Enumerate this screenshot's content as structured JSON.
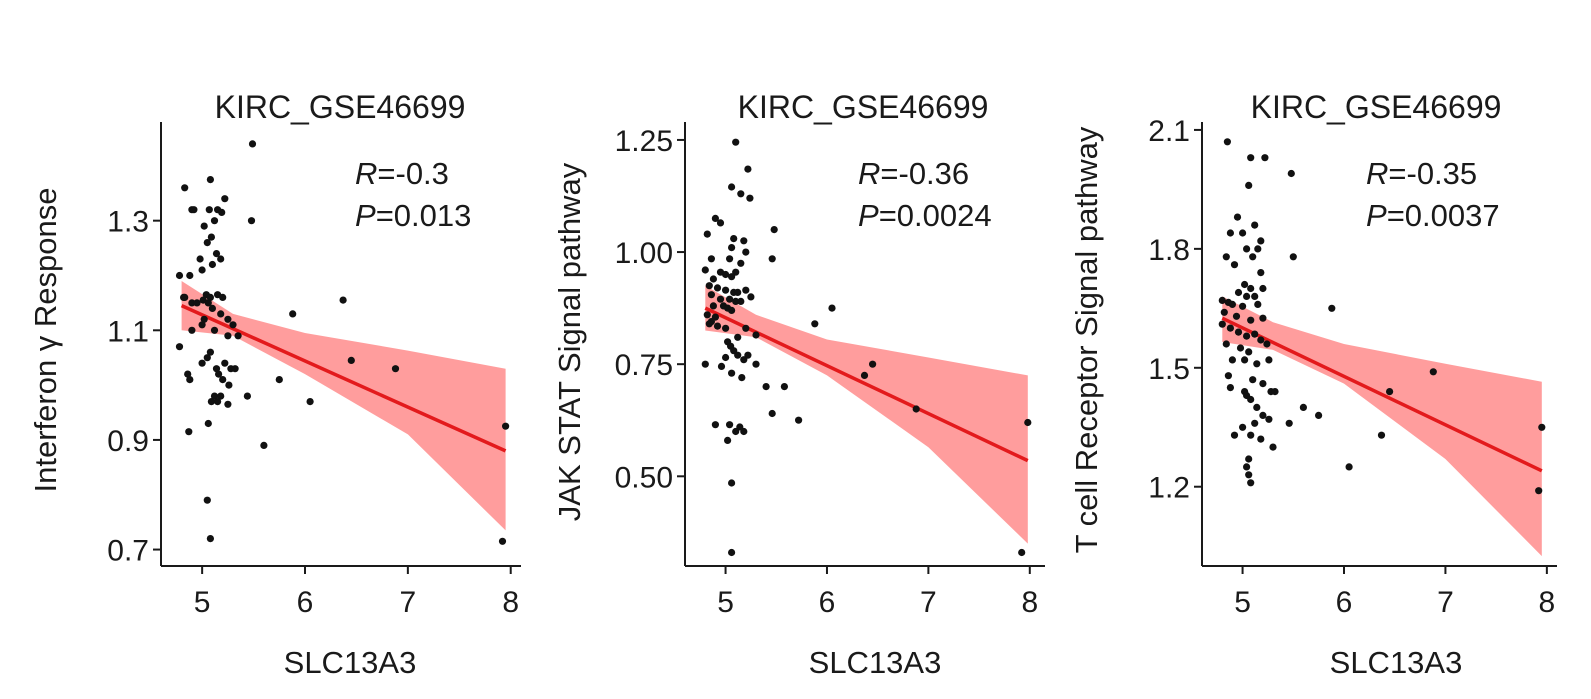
{
  "colors": {
    "ci_band": "#ff8c8c",
    "fit_line": "#e31a1c",
    "points": "#111111",
    "axis": "#1a1a1a"
  },
  "chart_data": [
    {
      "type": "scatter",
      "title": "KIRC_GSE46699",
      "xlabel": "SLC13A3",
      "ylabel": "Interferon γ Response",
      "xlim": [
        4.6,
        8.1
      ],
      "ylim": [
        0.67,
        1.48
      ],
      "xticks": [
        "5",
        "6",
        "7",
        "8"
      ],
      "yticks": [
        "0.7",
        "0.9",
        "1.1",
        "1.3"
      ],
      "stat_r_label": "R",
      "stat_r_value": "=-0.3",
      "stat_p_label": "P",
      "stat_p_value": "=0.013",
      "regression": {
        "x0": 4.8,
        "y0": 1.145,
        "x1": 7.95,
        "y1": 0.88
      },
      "ci": {
        "upper": [
          [
            4.8,
            1.19
          ],
          [
            5.3,
            1.13
          ],
          [
            6.0,
            1.095
          ],
          [
            7.0,
            1.063
          ],
          [
            7.95,
            1.03
          ]
        ],
        "lower": [
          [
            4.8,
            1.1
          ],
          [
            5.3,
            1.09
          ],
          [
            6.0,
            1.02
          ],
          [
            7.0,
            0.91
          ],
          [
            7.95,
            0.735
          ]
        ]
      },
      "points": [
        [
          5.49,
          1.44
        ],
        [
          4.83,
          1.36
        ],
        [
          5.08,
          1.375
        ],
        [
          4.9,
          1.32
        ],
        [
          4.92,
          1.32
        ],
        [
          5.22,
          1.34
        ],
        [
          5.15,
          1.32
        ],
        [
          5.07,
          1.32
        ],
        [
          5.19,
          1.315
        ],
        [
          5.48,
          1.3
        ],
        [
          5.12,
          1.3
        ],
        [
          5.05,
          1.26
        ],
        [
          5.09,
          1.27
        ],
        [
          5.02,
          1.29
        ],
        [
          5.18,
          1.23
        ],
        [
          5.14,
          1.24
        ],
        [
          4.98,
          1.23
        ],
        [
          5.1,
          1.22
        ],
        [
          4.78,
          1.2
        ],
        [
          4.88,
          1.2
        ],
        [
          5.0,
          1.21
        ],
        [
          4.83,
          1.16
        ],
        [
          4.82,
          1.16
        ],
        [
          4.9,
          1.15
        ],
        [
          5.04,
          1.165
        ],
        [
          5.08,
          1.16
        ],
        [
          5.15,
          1.165
        ],
        [
          5.2,
          1.16
        ],
        [
          4.95,
          1.15
        ],
        [
          5.01,
          1.155
        ],
        [
          5.06,
          1.15
        ],
        [
          5.02,
          1.12
        ],
        [
          5.1,
          1.14
        ],
        [
          5.18,
          1.13
        ],
        [
          5.25,
          1.12
        ],
        [
          4.9,
          1.1
        ],
        [
          5.0,
          1.11
        ],
        [
          5.12,
          1.1
        ],
        [
          5.3,
          1.11
        ],
        [
          4.78,
          1.07
        ],
        [
          5.08,
          1.06
        ],
        [
          5.25,
          1.09
        ],
        [
          5.35,
          1.09
        ],
        [
          5.05,
          1.05
        ],
        [
          5.0,
          1.04
        ],
        [
          5.14,
          1.03
        ],
        [
          5.22,
          1.04
        ],
        [
          5.28,
          1.03
        ],
        [
          5.32,
          1.03
        ],
        [
          4.86,
          1.02
        ],
        [
          5.16,
          1.02
        ],
        [
          4.88,
          1.01
        ],
        [
          5.2,
          1.01
        ],
        [
          5.26,
          1.0
        ],
        [
          5.12,
          0.98
        ],
        [
          5.18,
          0.98
        ],
        [
          5.44,
          0.98
        ],
        [
          5.09,
          0.97
        ],
        [
          5.15,
          0.97
        ],
        [
          5.25,
          0.965
        ],
        [
          5.06,
          0.93
        ],
        [
          4.87,
          0.915
        ],
        [
          5.6,
          0.89
        ],
        [
          5.75,
          1.01
        ],
        [
          6.05,
          0.97
        ],
        [
          5.88,
          1.13
        ],
        [
          6.37,
          1.155
        ],
        [
          6.45,
          1.045
        ],
        [
          6.88,
          1.03
        ],
        [
          7.95,
          0.925
        ],
        [
          7.92,
          0.715
        ],
        [
          5.05,
          0.79
        ],
        [
          5.08,
          0.72
        ]
      ]
    },
    {
      "type": "scatter",
      "title": "KIRC_GSE46699",
      "xlabel": "SLC13A3",
      "ylabel": "JAK STAT Signal pathway",
      "xlim": [
        4.6,
        8.15
      ],
      "ylim": [
        0.3,
        1.29
      ],
      "xticks": [
        "5",
        "6",
        "7",
        "8"
      ],
      "yticks": [
        "0.50",
        "0.75",
        "1.00",
        "1.25"
      ],
      "stat_r_label": "R",
      "stat_r_value": "=-0.36",
      "stat_p_label": "P",
      "stat_p_value": "=0.0024",
      "regression": {
        "x0": 4.8,
        "y0": 0.875,
        "x1": 7.98,
        "y1": 0.535
      },
      "ci": {
        "upper": [
          [
            4.8,
            0.925
          ],
          [
            5.3,
            0.86
          ],
          [
            6.0,
            0.805
          ],
          [
            7.0,
            0.765
          ],
          [
            7.98,
            0.725
          ]
        ],
        "lower": [
          [
            4.8,
            0.825
          ],
          [
            5.3,
            0.81
          ],
          [
            6.0,
            0.725
          ],
          [
            7.0,
            0.565
          ],
          [
            7.98,
            0.35
          ]
        ]
      },
      "points": [
        [
          5.1,
          1.245
        ],
        [
          5.22,
          1.185
        ],
        [
          5.06,
          1.145
        ],
        [
          5.15,
          1.13
        ],
        [
          5.24,
          1.12
        ],
        [
          4.9,
          1.075
        ],
        [
          4.95,
          1.065
        ],
        [
          5.48,
          1.05
        ],
        [
          4.82,
          1.04
        ],
        [
          5.08,
          1.03
        ],
        [
          5.18,
          1.025
        ],
        [
          5.06,
          1.01
        ],
        [
          5.2,
          1.0
        ],
        [
          4.86,
          0.985
        ],
        [
          5.04,
          0.985
        ],
        [
          5.15,
          0.975
        ],
        [
          5.46,
          0.985
        ],
        [
          4.8,
          0.96
        ],
        [
          4.95,
          0.955
        ],
        [
          5.1,
          0.955
        ],
        [
          5.0,
          0.95
        ],
        [
          5.06,
          0.945
        ],
        [
          4.88,
          0.94
        ],
        [
          4.84,
          0.925
        ],
        [
          4.92,
          0.92
        ],
        [
          5.0,
          0.915
        ],
        [
          5.08,
          0.91
        ],
        [
          5.12,
          0.91
        ],
        [
          5.2,
          0.915
        ],
        [
          4.86,
          0.905
        ],
        [
          4.95,
          0.895
        ],
        [
          5.04,
          0.895
        ],
        [
          5.1,
          0.89
        ],
        [
          5.15,
          0.89
        ],
        [
          5.25,
          0.9
        ],
        [
          4.88,
          0.88
        ],
        [
          4.98,
          0.88
        ],
        [
          5.02,
          0.875
        ],
        [
          5.06,
          0.87
        ],
        [
          4.82,
          0.86
        ],
        [
          4.9,
          0.855
        ],
        [
          4.86,
          0.845
        ],
        [
          4.84,
          0.84
        ],
        [
          4.92,
          0.835
        ],
        [
          5.0,
          0.83
        ],
        [
          5.2,
          0.83
        ],
        [
          5.3,
          0.815
        ],
        [
          5.12,
          0.81
        ],
        [
          5.02,
          0.8
        ],
        [
          5.05,
          0.79
        ],
        [
          5.08,
          0.78
        ],
        [
          5.12,
          0.77
        ],
        [
          5.18,
          0.76
        ],
        [
          5.22,
          0.77
        ],
        [
          5.0,
          0.765
        ],
        [
          4.8,
          0.75
        ],
        [
          4.96,
          0.745
        ],
        [
          5.06,
          0.73
        ],
        [
          5.16,
          0.72
        ],
        [
          5.3,
          0.75
        ],
        [
          5.4,
          0.7
        ],
        [
          5.58,
          0.7
        ],
        [
          5.46,
          0.64
        ],
        [
          5.72,
          0.625
        ],
        [
          4.9,
          0.615
        ],
        [
          5.04,
          0.615
        ],
        [
          5.14,
          0.61
        ],
        [
          5.1,
          0.6
        ],
        [
          5.18,
          0.6
        ],
        [
          5.02,
          0.58
        ],
        [
          5.06,
          0.485
        ],
        [
          5.06,
          0.33
        ],
        [
          5.88,
          0.84
        ],
        [
          6.05,
          0.875
        ],
        [
          6.37,
          0.725
        ],
        [
          6.45,
          0.75
        ],
        [
          6.88,
          0.65
        ],
        [
          7.98,
          0.62
        ],
        [
          7.92,
          0.33
        ]
      ]
    },
    {
      "type": "scatter",
      "title": "KIRC_GSE46699",
      "xlabel": "SLC13A3",
      "ylabel": "T cell Receptor Signal pathway",
      "xlim": [
        4.6,
        8.1
      ],
      "ylim": [
        1.0,
        2.12
      ],
      "xticks": [
        "5",
        "6",
        "7",
        "8"
      ],
      "yticks": [
        "1.2",
        "1.5",
        "1.8",
        "2.1"
      ],
      "stat_r_label": "R",
      "stat_r_value": "=-0.35",
      "stat_p_label": "P",
      "stat_p_value": "=0.0037",
      "regression": {
        "x0": 4.8,
        "y0": 1.625,
        "x1": 7.95,
        "y1": 1.24
      },
      "ci": {
        "upper": [
          [
            4.8,
            1.68
          ],
          [
            5.3,
            1.615
          ],
          [
            6.0,
            1.56
          ],
          [
            7.0,
            1.51
          ],
          [
            7.95,
            1.465
          ]
        ],
        "lower": [
          [
            4.8,
            1.565
          ],
          [
            5.3,
            1.545
          ],
          [
            6.0,
            1.46
          ],
          [
            7.0,
            1.27
          ],
          [
            7.95,
            1.025
          ]
        ]
      },
      "points": [
        [
          4.85,
          2.07
        ],
        [
          5.08,
          2.03
        ],
        [
          5.22,
          2.03
        ],
        [
          5.48,
          1.99
        ],
        [
          5.06,
          1.96
        ],
        [
          4.95,
          1.88
        ],
        [
          5.12,
          1.86
        ],
        [
          4.88,
          1.84
        ],
        [
          5.0,
          1.84
        ],
        [
          5.18,
          1.82
        ],
        [
          5.04,
          1.8
        ],
        [
          5.15,
          1.8
        ],
        [
          4.84,
          1.78
        ],
        [
          5.1,
          1.78
        ],
        [
          5.5,
          1.78
        ],
        [
          4.92,
          1.76
        ],
        [
          5.18,
          1.74
        ],
        [
          5.02,
          1.71
        ],
        [
          5.08,
          1.7
        ],
        [
          5.2,
          1.7
        ],
        [
          4.96,
          1.69
        ],
        [
          5.04,
          1.68
        ],
        [
          5.12,
          1.68
        ],
        [
          4.8,
          1.67
        ],
        [
          4.86,
          1.665
        ],
        [
          4.9,
          1.66
        ],
        [
          5.0,
          1.655
        ],
        [
          5.15,
          1.66
        ],
        [
          4.82,
          1.64
        ],
        [
          4.94,
          1.63
        ],
        [
          5.08,
          1.62
        ],
        [
          5.2,
          1.625
        ],
        [
          4.8,
          1.61
        ],
        [
          4.88,
          1.6
        ],
        [
          4.96,
          1.59
        ],
        [
          5.04,
          1.58
        ],
        [
          5.12,
          1.585
        ],
        [
          5.18,
          1.57
        ],
        [
          4.84,
          1.56
        ],
        [
          4.98,
          1.55
        ],
        [
          5.06,
          1.54
        ],
        [
          5.24,
          1.56
        ],
        [
          4.9,
          1.52
        ],
        [
          5.02,
          1.52
        ],
        [
          5.14,
          1.51
        ],
        [
          5.26,
          1.52
        ],
        [
          4.86,
          1.48
        ],
        [
          5.1,
          1.47
        ],
        [
          5.2,
          1.46
        ],
        [
          4.88,
          1.45
        ],
        [
          5.02,
          1.44
        ],
        [
          5.28,
          1.44
        ],
        [
          5.32,
          1.44
        ],
        [
          5.04,
          1.43
        ],
        [
          5.08,
          1.42
        ],
        [
          5.14,
          1.4
        ],
        [
          5.2,
          1.38
        ],
        [
          5.26,
          1.37
        ],
        [
          5.12,
          1.36
        ],
        [
          5.46,
          1.36
        ],
        [
          5.0,
          1.35
        ],
        [
          4.92,
          1.33
        ],
        [
          5.08,
          1.33
        ],
        [
          5.18,
          1.32
        ],
        [
          5.3,
          1.3
        ],
        [
          5.06,
          1.27
        ],
        [
          5.04,
          1.25
        ],
        [
          5.06,
          1.23
        ],
        [
          5.08,
          1.21
        ],
        [
          5.6,
          1.4
        ],
        [
          5.75,
          1.38
        ],
        [
          5.88,
          1.65
        ],
        [
          6.05,
          1.25
        ],
        [
          6.37,
          1.33
        ],
        [
          6.45,
          1.44
        ],
        [
          6.88,
          1.49
        ],
        [
          7.95,
          1.35
        ],
        [
          7.92,
          1.19
        ]
      ]
    }
  ]
}
